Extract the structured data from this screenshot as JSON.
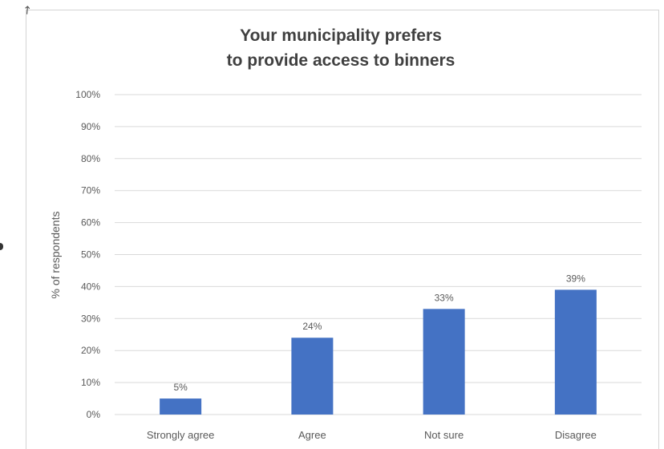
{
  "corner_glyph": "↗",
  "chart_data": {
    "type": "bar",
    "title": [
      "Your municipality prefers",
      "to provide access to binners"
    ],
    "xlabel": "",
    "ylabel": "% of respondents",
    "categories": [
      "Strongly agree",
      "Agree",
      "Not sure",
      "Disagree"
    ],
    "values": [
      5,
      24,
      33,
      39
    ],
    "data_labels": [
      "5%",
      "24%",
      "33%",
      "39%"
    ],
    "ylim": [
      0,
      100
    ],
    "yticks": [
      0,
      10,
      20,
      30,
      40,
      50,
      60,
      70,
      80,
      90,
      100
    ],
    "ytick_labels": [
      "0%",
      "10%",
      "20%",
      "30%",
      "40%",
      "50%",
      "60%",
      "70%",
      "80%",
      "90%",
      "100%"
    ],
    "grid": true,
    "legend": "none",
    "bar_color": "#4472C4",
    "grid_color": "#d9d9d9",
    "text_color": "#595959",
    "title_color": "#404040"
  }
}
